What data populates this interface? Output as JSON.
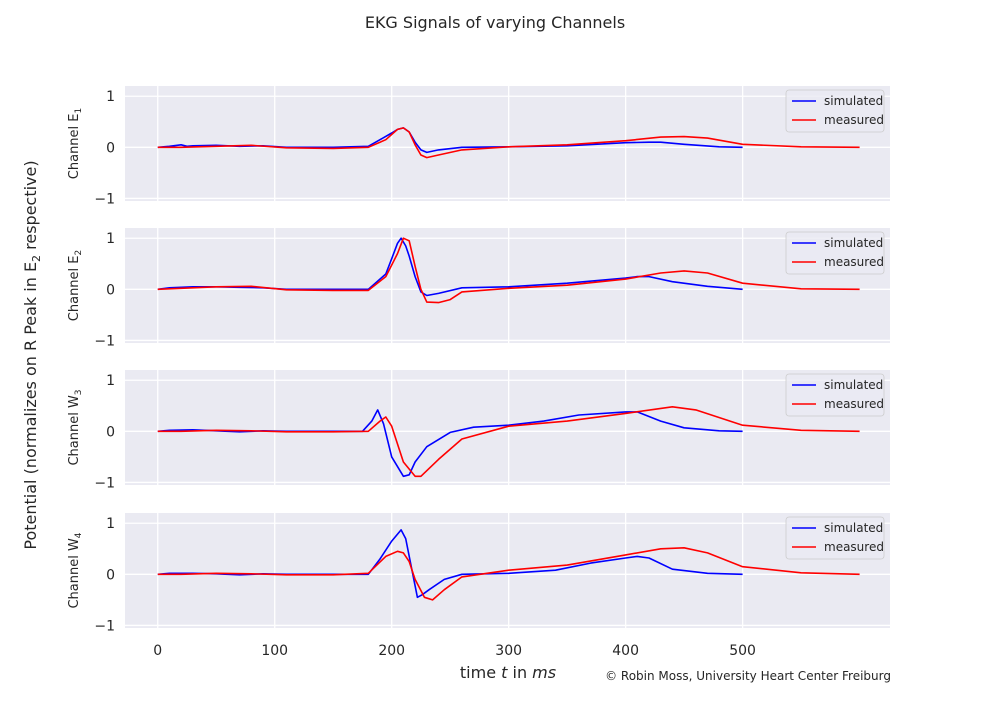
{
  "figure": {
    "title": "EKG Signals of varying Channels",
    "ylabel_main": "Potential (normalizes on R Peak in E",
    "ylabel_main_sub": "2",
    "ylabel_main_tail": " respective)",
    "xlabel_prefix": "time ",
    "xlabel_var": "t",
    "xlabel_mid": " in ",
    "xlabel_unit": "ms",
    "credit": "© Robin Moss, University Heart Center Freiburg"
  },
  "chart_data": [
    {
      "type": "line",
      "ylabel": "Channel E",
      "ylabel_sub": "1",
      "xlim": [
        -28,
        626
      ],
      "ylim": [
        -1.05,
        1.2
      ],
      "xticks": [
        0,
        100,
        200,
        300,
        400,
        500
      ],
      "yticks": [
        -1,
        0,
        1
      ],
      "grid": true,
      "legend": "top-right",
      "series": [
        {
          "name": "simulated",
          "color": "#0000ff",
          "x": [
            0,
            10,
            20,
            25,
            30,
            50,
            70,
            90,
            110,
            150,
            180,
            190,
            200,
            205,
            210,
            215,
            220,
            225,
            230,
            240,
            260,
            300,
            350,
            400,
            420,
            430,
            450,
            480,
            500
          ],
          "y": [
            0,
            0.02,
            0.05,
            0.02,
            0.03,
            0.04,
            0.02,
            0.03,
            0,
            0,
            0.02,
            0.15,
            0.28,
            0.35,
            0.38,
            0.3,
            0.1,
            -0.05,
            -0.1,
            -0.05,
            0,
            0.01,
            0.03,
            0.09,
            0.1,
            0.1,
            0.06,
            0.01,
            0
          ]
        },
        {
          "name": "measured",
          "color": "#ff0000",
          "x": [
            0,
            20,
            50,
            80,
            110,
            150,
            180,
            195,
            205,
            210,
            215,
            220,
            225,
            230,
            240,
            260,
            300,
            350,
            400,
            430,
            450,
            470,
            500,
            550,
            600
          ],
          "y": [
            0,
            0,
            0.02,
            0.04,
            -0.01,
            -0.02,
            0,
            0.15,
            0.35,
            0.38,
            0.3,
            0.05,
            -0.15,
            -0.2,
            -0.15,
            -0.05,
            0.01,
            0.05,
            0.13,
            0.2,
            0.21,
            0.18,
            0.06,
            0.01,
            0
          ]
        }
      ]
    },
    {
      "type": "line",
      "ylabel": "Channel E",
      "ylabel_sub": "2",
      "xlim": [
        -28,
        626
      ],
      "ylim": [
        -1.05,
        1.2
      ],
      "xticks": [
        0,
        100,
        200,
        300,
        400,
        500
      ],
      "yticks": [
        -1,
        0,
        1
      ],
      "grid": true,
      "legend": "top-right",
      "series": [
        {
          "name": "simulated",
          "color": "#0000ff",
          "x": [
            0,
            10,
            30,
            50,
            70,
            90,
            110,
            150,
            180,
            195,
            200,
            205,
            208,
            212,
            215,
            220,
            225,
            230,
            240,
            260,
            300,
            350,
            400,
            410,
            420,
            440,
            470,
            500
          ],
          "y": [
            0,
            0.03,
            0.05,
            0.05,
            0.04,
            0.03,
            0,
            0,
            0,
            0.3,
            0.6,
            0.9,
            1.0,
            0.85,
            0.65,
            0.25,
            -0.05,
            -0.12,
            -0.08,
            0.03,
            0.05,
            0.12,
            0.22,
            0.25,
            0.25,
            0.15,
            0.06,
            0
          ]
        },
        {
          "name": "measured",
          "color": "#ff0000",
          "x": [
            0,
            20,
            50,
            80,
            110,
            150,
            180,
            195,
            205,
            210,
            215,
            220,
            225,
            230,
            240,
            250,
            260,
            300,
            350,
            400,
            430,
            450,
            470,
            500,
            550,
            600
          ],
          "y": [
            0,
            0.02,
            0.05,
            0.06,
            -0.01,
            -0.02,
            -0.02,
            0.25,
            0.7,
            1.0,
            0.95,
            0.45,
            0.0,
            -0.25,
            -0.26,
            -0.2,
            -0.05,
            0.02,
            0.08,
            0.2,
            0.32,
            0.36,
            0.32,
            0.12,
            0.01,
            0
          ]
        }
      ]
    },
    {
      "type": "line",
      "ylabel": "Channel W",
      "ylabel_sub": "3",
      "xlim": [
        -28,
        626
      ],
      "ylim": [
        -1.05,
        1.2
      ],
      "xticks": [
        0,
        100,
        200,
        300,
        400,
        500
      ],
      "yticks": [
        -1,
        0,
        1
      ],
      "grid": true,
      "legend": "top-right",
      "series": [
        {
          "name": "simulated",
          "color": "#0000ff",
          "x": [
            0,
            10,
            30,
            50,
            70,
            90,
            110,
            150,
            175,
            183,
            188,
            193,
            200,
            210,
            215,
            220,
            230,
            250,
            270,
            300,
            330,
            360,
            400,
            410,
            430,
            450,
            480,
            500
          ],
          "y": [
            0,
            0.02,
            0.03,
            0.01,
            -0.01,
            0.01,
            0,
            0,
            0,
            0.2,
            0.42,
            0.15,
            -0.5,
            -0.88,
            -0.85,
            -0.6,
            -0.3,
            -0.02,
            0.08,
            0.12,
            0.2,
            0.32,
            0.38,
            0.38,
            0.2,
            0.07,
            0.01,
            0
          ]
        },
        {
          "name": "measured",
          "color": "#ff0000",
          "x": [
            0,
            20,
            50,
            80,
            110,
            150,
            180,
            190,
            195,
            200,
            210,
            220,
            225,
            240,
            260,
            300,
            350,
            400,
            440,
            460,
            500,
            550,
            600
          ],
          "y": [
            0,
            0,
            0.02,
            0.01,
            -0.01,
            -0.01,
            0.0,
            0.2,
            0.28,
            0.1,
            -0.6,
            -0.88,
            -0.88,
            -0.55,
            -0.15,
            0.1,
            0.2,
            0.35,
            0.48,
            0.42,
            0.12,
            0.02,
            0
          ]
        }
      ]
    },
    {
      "type": "line",
      "ylabel": "Channel W",
      "ylabel_sub": "4",
      "xlim": [
        -28,
        626
      ],
      "ylim": [
        -1.05,
        1.2
      ],
      "xticks": [
        0,
        100,
        200,
        300,
        400,
        500
      ],
      "yticks": [
        -1,
        0,
        1
      ],
      "grid": true,
      "legend": "top-right",
      "series": [
        {
          "name": "simulated",
          "color": "#0000ff",
          "x": [
            0,
            10,
            30,
            50,
            70,
            90,
            110,
            150,
            180,
            190,
            200,
            208,
            212,
            218,
            222,
            226,
            232,
            245,
            260,
            300,
            340,
            370,
            400,
            410,
            420,
            440,
            470,
            500
          ],
          "y": [
            0,
            0.02,
            0.02,
            0.01,
            -0.01,
            0.01,
            0,
            0,
            0,
            0.3,
            0.65,
            0.87,
            0.7,
            0.0,
            -0.45,
            -0.4,
            -0.3,
            -0.1,
            0.0,
            0.02,
            0.08,
            0.22,
            0.32,
            0.35,
            0.32,
            0.1,
            0.02,
            0
          ]
        },
        {
          "name": "measured",
          "color": "#ff0000",
          "x": [
            0,
            20,
            50,
            80,
            110,
            150,
            180,
            195,
            205,
            210,
            215,
            220,
            228,
            235,
            245,
            260,
            300,
            350,
            400,
            430,
            450,
            470,
            500,
            550,
            600
          ],
          "y": [
            0,
            0,
            0.02,
            0.01,
            -0.01,
            -0.01,
            0.02,
            0.35,
            0.45,
            0.42,
            0.25,
            -0.1,
            -0.45,
            -0.5,
            -0.3,
            -0.05,
            0.08,
            0.18,
            0.38,
            0.5,
            0.52,
            0.42,
            0.15,
            0.03,
            0
          ]
        }
      ]
    }
  ]
}
